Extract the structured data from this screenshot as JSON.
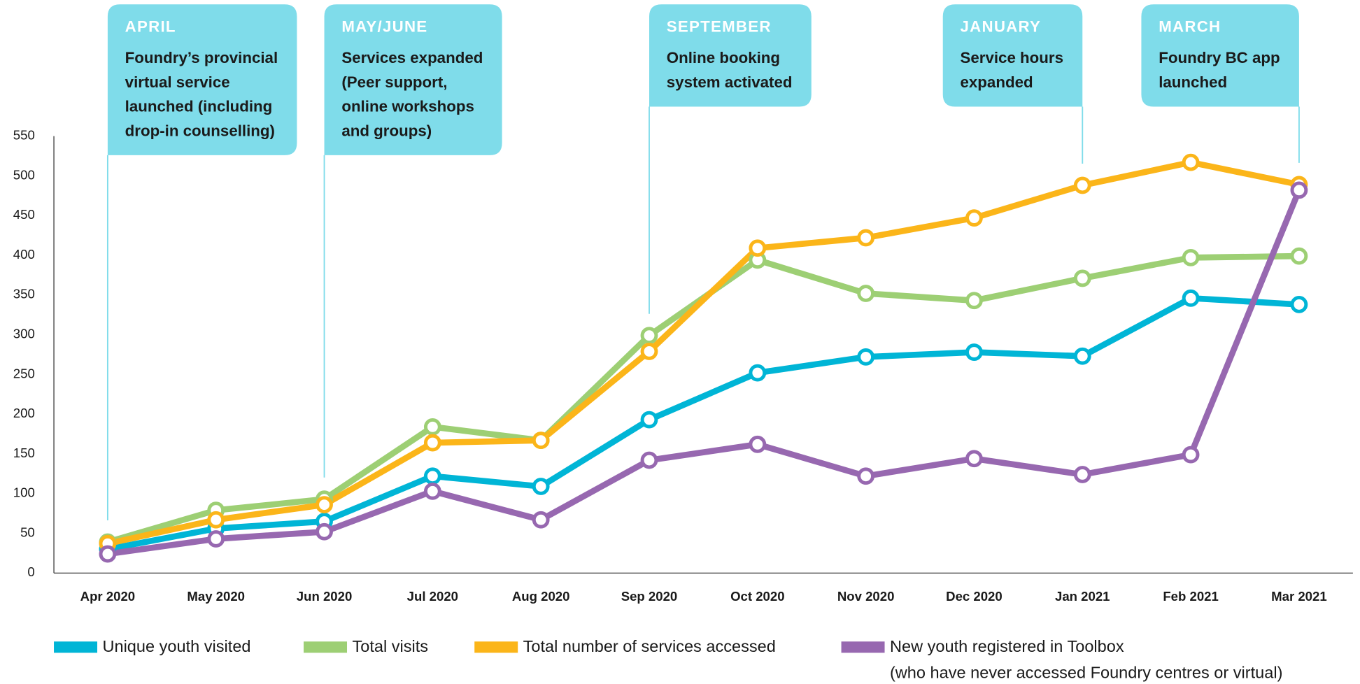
{
  "chart_data": {
    "type": "line",
    "categories": [
      "Apr 2020",
      "May 2020",
      "Jun 2020",
      "Jul 2020",
      "Aug 2020",
      "Sep 2020",
      "Oct 2020",
      "Nov 2020",
      "Dec 2020",
      "Jan 2021",
      "Feb 2021",
      "Mar 2021"
    ],
    "series": [
      {
        "name": "Unique youth visited",
        "color": "#00b5d6",
        "values": [
          30,
          56,
          65,
          122,
          109,
          193,
          252,
          272,
          278,
          273,
          346,
          338
        ]
      },
      {
        "name": "Total visits",
        "color": "#9dcf74",
        "values": [
          39,
          79,
          93,
          184,
          167,
          299,
          394,
          352,
          343,
          371,
          397,
          399
        ]
      },
      {
        "name": "Total number of services accessed",
        "color": "#fbb519",
        "values": [
          37,
          67,
          86,
          164,
          167,
          279,
          409,
          422,
          447,
          488,
          517,
          489
        ]
      },
      {
        "name": "New youth registered in Toolbox",
        "legend_note": "(who have never accessed Foundry centres or virtual)",
        "color": "#9768b0",
        "values": [
          24,
          43,
          52,
          103,
          67,
          142,
          162,
          122,
          144,
          124,
          149,
          482
        ]
      }
    ],
    "ylim": [
      0,
      550
    ],
    "yticks": [
      0,
      50,
      100,
      150,
      200,
      250,
      300,
      350,
      400,
      450,
      500,
      550
    ],
    "grid": false,
    "annotations": [
      {
        "x": "Apr 2020",
        "label": "APRIL",
        "text": [
          "Foundry’s provincial",
          "virtual service",
          "launched (including",
          "drop-in counselling)"
        ]
      },
      {
        "x": "Jun 2020",
        "label": "MAY/JUNE",
        "text": [
          "Services expanded",
          "(Peer support,",
          "online workshops",
          "and groups)"
        ]
      },
      {
        "x": "Sep 2020",
        "label": "SEPTEMBER",
        "text": [
          "Online booking",
          "system activated"
        ]
      },
      {
        "x": "Jan 2021",
        "label": "JANUARY",
        "text": [
          "Service hours",
          "expanded"
        ]
      },
      {
        "x": "Mar 2021",
        "label": "MARCH",
        "text": [
          "Foundry BC app",
          "launched"
        ]
      }
    ],
    "annotation_color": "#7fdcea"
  }
}
